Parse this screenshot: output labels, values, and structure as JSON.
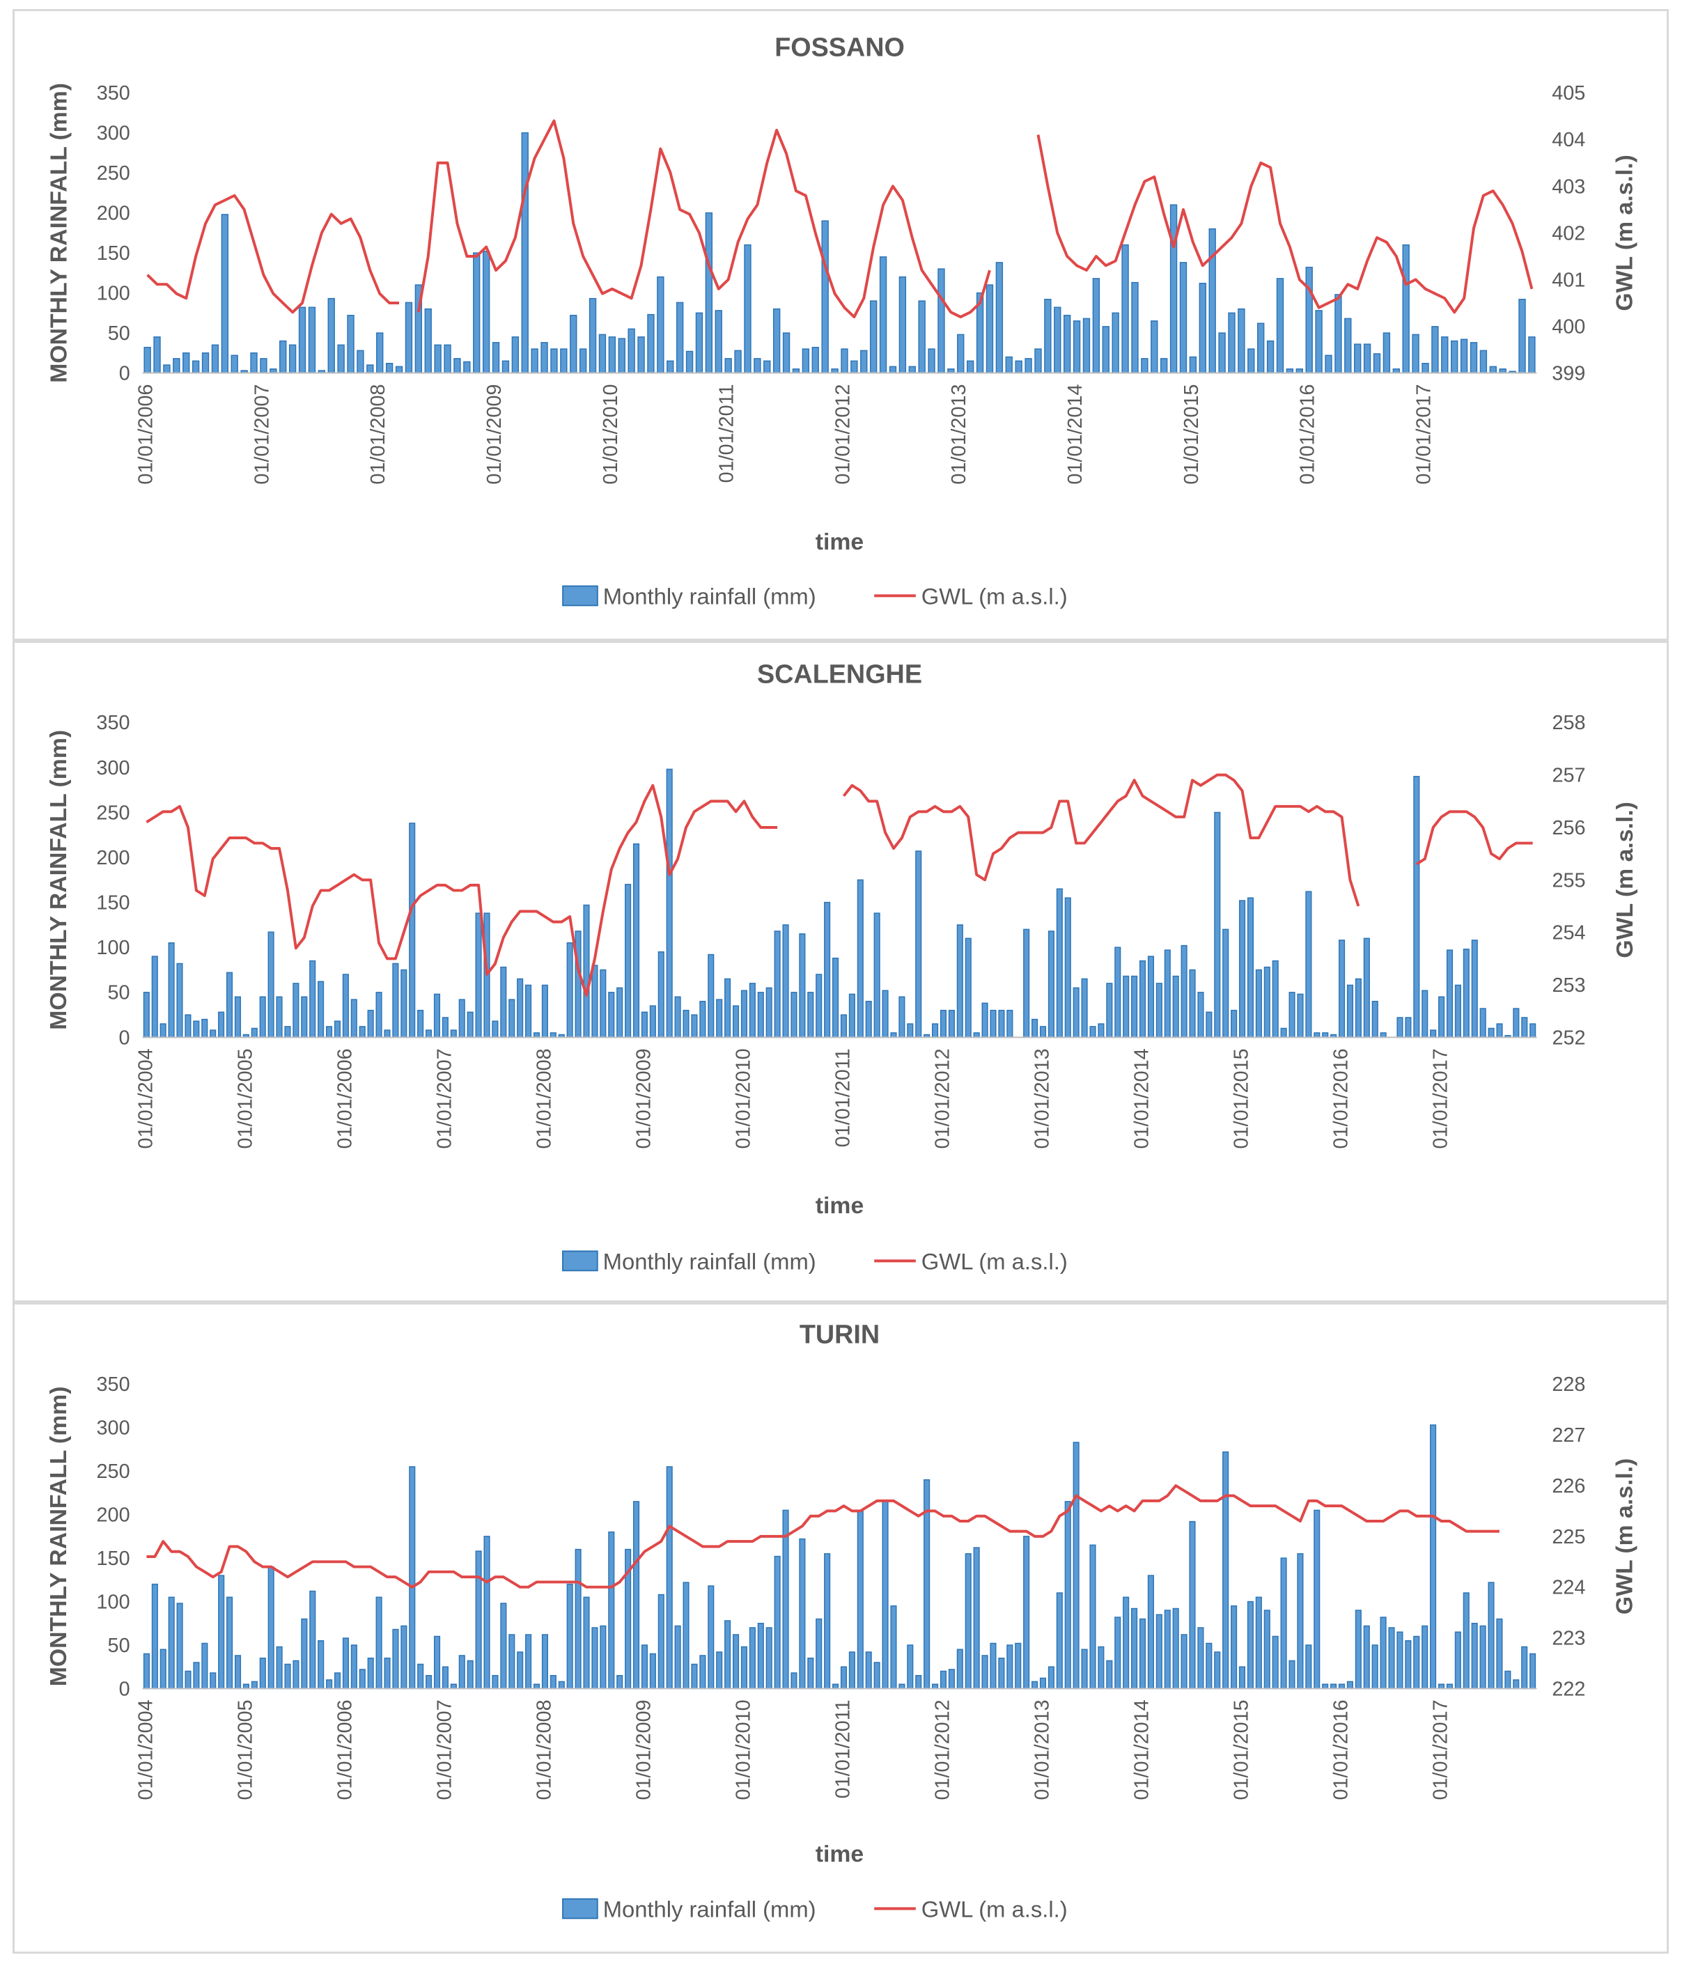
{
  "chart_data": [
    {
      "type": "bar+line",
      "title": "FOSSANO",
      "xlabel": "time",
      "ylabel_left": "MONTHLY RAINFALL (mm)",
      "ylabel_right": "GWL (m a.s.l.)",
      "start": [
        2006,
        1
      ],
      "months": 144,
      "yleft_range": [
        0,
        350
      ],
      "yleft_ticks": [
        "0",
        "50",
        "100",
        "150",
        "200",
        "250",
        "300",
        "350"
      ],
      "yright_range": [
        399,
        405
      ],
      "yright_ticks": [
        "399",
        "400",
        "401",
        "402",
        "403",
        "404",
        "405"
      ],
      "x_ticks": [
        "01/01/2006",
        "01/01/2007",
        "01/01/2008",
        "01/01/2009",
        "01/01/2010",
        "01/01/2011",
        "01/01/2012",
        "01/01/2013",
        "01/01/2014",
        "01/01/2015",
        "01/01/2016",
        "01/01/2017"
      ],
      "legend": [
        "Monthly rainfall (mm)",
        "GWL (m a.s.l.)"
      ],
      "bar_color": "#5b9bd5",
      "line_color": "#e04848",
      "rainfall_mm": [
        32,
        45,
        10,
        18,
        25,
        15,
        25,
        35,
        198,
        22,
        3,
        25,
        18,
        5,
        40,
        35,
        82,
        82,
        3,
        93,
        35,
        72,
        28,
        10,
        50,
        12,
        8,
        88,
        110,
        80,
        35,
        35,
        18,
        14,
        150,
        152,
        38,
        15,
        45,
        300,
        30,
        38,
        30,
        30,
        72,
        30,
        93,
        48,
        45,
        43,
        55,
        45,
        73,
        120,
        15,
        88,
        27,
        75,
        200,
        78,
        18,
        28,
        160,
        18,
        15,
        80,
        50,
        5,
        30,
        32,
        190,
        5,
        30,
        15,
        28,
        90,
        145,
        8,
        120,
        8,
        90,
        30,
        130,
        5,
        48,
        15,
        100,
        110,
        138,
        20,
        15,
        18,
        30,
        92,
        82,
        72,
        65,
        68,
        118,
        58,
        75,
        160,
        113,
        18,
        65,
        18,
        210,
        138,
        20,
        112,
        180,
        50,
        75,
        80,
        30,
        62,
        40,
        118,
        5,
        5,
        132,
        78,
        22,
        98,
        68,
        36,
        36,
        24,
        50,
        5,
        160,
        48,
        12,
        58,
        45,
        40,
        42,
        38,
        28,
        8,
        5,
        2,
        92,
        45
      ],
      "gwl_segments": [
        {
          "start": 0,
          "values": [
            401.1,
            400.9,
            400.9,
            400.7,
            400.6,
            401.5,
            402.2,
            402.6,
            402.7,
            402.8,
            402.5,
            401.8,
            401.1,
            400.7,
            400.5,
            400.3,
            400.5,
            401.3,
            402.0,
            402.4,
            402.2,
            402.3,
            401.9,
            401.2,
            400.7,
            400.5,
            400.5
          ]
        },
        {
          "start": 28,
          "values": [
            400.3,
            401.5,
            403.5,
            403.5,
            402.2,
            401.5,
            401.5,
            401.7,
            401.2,
            401.4,
            401.9,
            402.9,
            403.6,
            404.0,
            404.4,
            403.6,
            402.2,
            401.5,
            401.1,
            400.7,
            400.8,
            400.7,
            400.6,
            401.3,
            402.5,
            403.8,
            403.3,
            402.5,
            402.4,
            402.0,
            401.3,
            400.8,
            401.0,
            401.8,
            402.3,
            402.6,
            403.5,
            404.2,
            403.7,
            402.9,
            402.8,
            402.0,
            401.3,
            400.7,
            400.4,
            400.2,
            400.6,
            401.7,
            402.6,
            403.0,
            402.7,
            401.9,
            401.2,
            400.9,
            400.6,
            400.3,
            400.2,
            400.3,
            400.5,
            401.2
          ]
        },
        {
          "start": 92,
          "values": [
            404.1,
            403.0,
            402.0,
            401.5,
            401.3,
            401.2,
            401.5,
            401.3,
            401.4,
            402.0,
            402.6,
            403.1,
            403.2,
            402.4,
            401.7,
            402.5,
            401.8,
            401.3,
            401.5,
            401.7,
            401.9,
            402.2,
            403.0,
            403.5,
            403.4,
            402.2,
            401.7,
            401.0,
            400.8,
            400.4,
            400.5,
            400.6,
            400.9,
            400.8,
            401.4,
            401.9,
            401.8,
            401.5,
            400.9,
            401.0,
            400.8,
            400.7,
            400.6,
            400.3,
            400.6,
            402.1,
            402.8,
            402.9,
            402.6,
            402.2,
            401.6,
            400.8
          ]
        }
      ]
    },
    {
      "type": "bar+line",
      "title": "SCALENGHE",
      "xlabel": "time",
      "ylabel_left": "MONTHLY RAINFALL (mm)",
      "ylabel_right": "GWL (m a.s.l.)",
      "start": [
        2004,
        1
      ],
      "months": 168,
      "yleft_range": [
        0,
        350
      ],
      "yleft_ticks": [
        "0",
        "50",
        "100",
        "150",
        "200",
        "250",
        "300",
        "350"
      ],
      "yright_range": [
        252,
        258
      ],
      "yright_ticks": [
        "252",
        "253",
        "254",
        "255",
        "256",
        "257",
        "258"
      ],
      "x_ticks": [
        "01/01/2004",
        "01/01/2005",
        "01/01/2006",
        "01/01/2007",
        "01/01/2008",
        "01/01/2009",
        "01/01/2010",
        "01/01/2011",
        "01/01/2012",
        "01/01/2013",
        "01/01/2014",
        "01/01/2015",
        "01/01/2016",
        "01/01/2017"
      ],
      "legend": [
        "Monthly rainfall (mm)",
        "GWL (m a.s.l.)"
      ],
      "bar_color": "#5b9bd5",
      "line_color": "#e04848",
      "rainfall_mm": [
        50,
        90,
        15,
        105,
        82,
        25,
        18,
        20,
        8,
        28,
        72,
        45,
        3,
        10,
        45,
        117,
        45,
        12,
        60,
        45,
        85,
        62,
        12,
        18,
        70,
        42,
        12,
        30,
        50,
        8,
        82,
        75,
        238,
        30,
        8,
        48,
        22,
        8,
        42,
        28,
        138,
        138,
        18,
        78,
        42,
        65,
        58,
        5,
        58,
        5,
        3,
        105,
        118,
        147,
        80,
        75,
        50,
        55,
        170,
        215,
        28,
        35,
        95,
        298,
        45,
        30,
        25,
        40,
        92,
        42,
        65,
        35,
        52,
        60,
        50,
        55,
        118,
        125,
        50,
        115,
        50,
        70,
        150,
        88,
        25,
        48,
        175,
        40,
        138,
        52,
        5,
        45,
        15,
        207,
        3,
        15,
        30,
        30,
        125,
        110,
        5,
        38,
        30,
        30,
        30,
        0,
        120,
        20,
        12,
        118,
        165,
        155,
        55,
        65,
        12,
        15,
        60,
        100,
        68,
        68,
        85,
        90,
        60,
        97,
        68,
        102,
        75,
        50,
        28,
        250,
        120,
        30,
        152,
        155,
        75,
        78,
        85,
        10,
        50,
        48,
        162,
        5,
        5,
        3,
        108,
        58,
        65,
        110,
        40,
        5,
        0,
        22,
        22,
        290,
        52,
        8,
        45,
        97,
        58,
        98,
        108,
        32,
        10,
        15,
        2,
        32,
        22,
        15
      ],
      "gwl_segments": [
        {
          "start": 0,
          "values": [
            256.1,
            256.2,
            256.3,
            256.3,
            256.4,
            256.0,
            254.8,
            254.7,
            255.4,
            255.6,
            255.8,
            255.8,
            255.8,
            255.7,
            255.7,
            255.6,
            255.6,
            254.8,
            253.7,
            253.9,
            254.5,
            254.8,
            254.8,
            254.9,
            255.0,
            255.1,
            255.0,
            255.0,
            253.8,
            253.5,
            253.5,
            254.0,
            254.5,
            254.7,
            254.8,
            254.9,
            254.9,
            254.8,
            254.8,
            254.9,
            254.9,
            253.2,
            253.4,
            253.9,
            254.2,
            254.4,
            254.4,
            254.4,
            254.3,
            254.2,
            254.2,
            254.3,
            253.3,
            252.8,
            253.5,
            254.4,
            255.2,
            255.6,
            255.9,
            256.1,
            256.5,
            256.8,
            256.2,
            255.1,
            255.4,
            256.0,
            256.3,
            256.4,
            256.5,
            256.5,
            256.5,
            256.3,
            256.5,
            256.2,
            256.0,
            256.0,
            256.0
          ]
        },
        {
          "start": 84,
          "values": [
            256.6,
            256.8,
            256.7,
            256.5,
            256.5,
            255.9,
            255.6,
            255.8,
            256.2,
            256.3,
            256.3,
            256.4,
            256.3,
            256.3,
            256.4,
            256.2,
            255.1,
            255.0,
            255.5,
            255.6,
            255.8,
            255.9,
            255.9,
            255.9,
            255.9,
            256.0,
            256.5,
            256.5,
            255.7,
            255.7,
            255.9,
            256.1,
            256.3,
            256.5,
            256.6,
            256.9,
            256.6,
            256.5,
            256.4,
            256.3,
            256.2,
            256.2,
            256.9,
            256.8,
            256.9,
            257.0,
            257.0,
            256.9,
            256.7,
            255.8,
            255.8,
            256.1,
            256.4,
            256.4,
            256.4,
            256.4,
            256.3,
            256.4,
            256.3,
            256.3,
            256.2,
            255.0,
            254.5
          ]
        },
        {
          "start": 153,
          "values": [
            255.3,
            255.4,
            256.0,
            256.2,
            256.3,
            256.3,
            256.3,
            256.2,
            256.0,
            255.5,
            255.4,
            255.6,
            255.7,
            255.7,
            255.7
          ]
        }
      ]
    },
    {
      "type": "bar+line",
      "title": "TURIN",
      "xlabel": "time",
      "ylabel_left": "MONTHLY RAINFALL (mm)",
      "ylabel_right": "GWL (m a.s.l.)",
      "start": [
        2004,
        1
      ],
      "months": 168,
      "yleft_range": [
        0,
        350
      ],
      "yleft_ticks": [
        "0",
        "50",
        "100",
        "150",
        "200",
        "250",
        "300",
        "350"
      ],
      "yright_range": [
        222,
        228
      ],
      "yright_ticks": [
        "222",
        "223",
        "224",
        "225",
        "226",
        "227",
        "228"
      ],
      "x_ticks": [
        "01/01/2004",
        "01/01/2005",
        "01/01/2006",
        "01/01/2007",
        "01/01/2008",
        "01/01/2009",
        "01/01/2010",
        "01/01/2011",
        "01/01/2012",
        "01/01/2013",
        "01/01/2014",
        "01/01/2015",
        "01/01/2016",
        "01/01/2017"
      ],
      "legend": [
        "Monthly rainfall (mm)",
        "GWL (m a.s.l.)"
      ],
      "bar_color": "#5b9bd5",
      "line_color": "#e04848",
      "rainfall_mm": [
        40,
        120,
        45,
        105,
        98,
        20,
        30,
        52,
        18,
        130,
        105,
        38,
        5,
        8,
        35,
        140,
        48,
        28,
        32,
        80,
        112,
        55,
        10,
        18,
        58,
        50,
        22,
        35,
        105,
        35,
        68,
        72,
        255,
        28,
        15,
        60,
        25,
        5,
        38,
        32,
        158,
        175,
        15,
        98,
        62,
        42,
        62,
        5,
        62,
        15,
        8,
        120,
        160,
        105,
        70,
        72,
        180,
        15,
        160,
        215,
        50,
        40,
        108,
        255,
        72,
        122,
        28,
        38,
        118,
        42,
        78,
        62,
        48,
        70,
        75,
        70,
        152,
        205,
        18,
        172,
        35,
        80,
        155,
        5,
        25,
        42,
        205,
        42,
        30,
        215,
        95,
        5,
        50,
        15,
        240,
        5,
        20,
        22,
        45,
        155,
        162,
        38,
        52,
        35,
        50,
        52,
        175,
        8,
        12,
        25,
        110,
        215,
        283,
        45,
        165,
        48,
        32,
        82,
        105,
        92,
        80,
        130,
        85,
        90,
        92,
        62,
        192,
        70,
        52,
        42,
        272,
        95,
        25,
        100,
        105,
        90,
        60,
        150,
        32,
        155,
        50,
        205,
        5,
        5,
        5,
        8,
        90,
        72,
        50,
        82,
        70,
        65,
        55,
        60,
        72,
        303,
        5,
        5,
        65,
        110,
        75,
        72,
        122,
        80,
        20,
        10,
        48,
        40
      ],
      "gwl_segments": [
        {
          "start": 0,
          "values": [
            224.6,
            224.6,
            224.9,
            224.7,
            224.7,
            224.6,
            224.4,
            224.3,
            224.2,
            224.3,
            224.8,
            224.8,
            224.7,
            224.5,
            224.4,
            224.4,
            224.3,
            224.2,
            224.3,
            224.4,
            224.5,
            224.5,
            224.5,
            224.5,
            224.5,
            224.4,
            224.4,
            224.4,
            224.3,
            224.2,
            224.2,
            224.1,
            224.0,
            224.1,
            224.3,
            224.3,
            224.3,
            224.3,
            224.2,
            224.2,
            224.2,
            224.1,
            224.2,
            224.2,
            224.1,
            224.0,
            224.0,
            224.1,
            224.1,
            224.1,
            224.1,
            224.1,
            224.1,
            224.0,
            224.0,
            224.0,
            224.0,
            224.1,
            224.3,
            224.5,
            224.7,
            224.8,
            224.9,
            225.2,
            225.1,
            225.0,
            224.9,
            224.8,
            224.8,
            224.8,
            224.9,
            224.9,
            224.9,
            224.9,
            225.0,
            225.0,
            225.0,
            225.0,
            225.1,
            225.2,
            225.4,
            225.4,
            225.5,
            225.5,
            225.6,
            225.5,
            225.5,
            225.6,
            225.7,
            225.7,
            225.7,
            225.6,
            225.5,
            225.4,
            225.5,
            225.5,
            225.4,
            225.4,
            225.3,
            225.3,
            225.4,
            225.4,
            225.3,
            225.2,
            225.1,
            225.1,
            225.1,
            225.0,
            225.0,
            225.1,
            225.4,
            225.5,
            225.8,
            225.7,
            225.6,
            225.5,
            225.6,
            225.5,
            225.6,
            225.5,
            225.7,
            225.7,
            225.7,
            225.8,
            226.0,
            225.9,
            225.8,
            225.7,
            225.7,
            225.7,
            225.8,
            225.8,
            225.7,
            225.6,
            225.6,
            225.6,
            225.6,
            225.5,
            225.4,
            225.3,
            225.7,
            225.7,
            225.6,
            225.6,
            225.6,
            225.5,
            225.4,
            225.3,
            225.3,
            225.3,
            225.4,
            225.5,
            225.5,
            225.4,
            225.4,
            225.4,
            225.3,
            225.3,
            225.2,
            225.1,
            225.1,
            225.1,
            225.1,
            225.1
          ]
        }
      ]
    }
  ]
}
